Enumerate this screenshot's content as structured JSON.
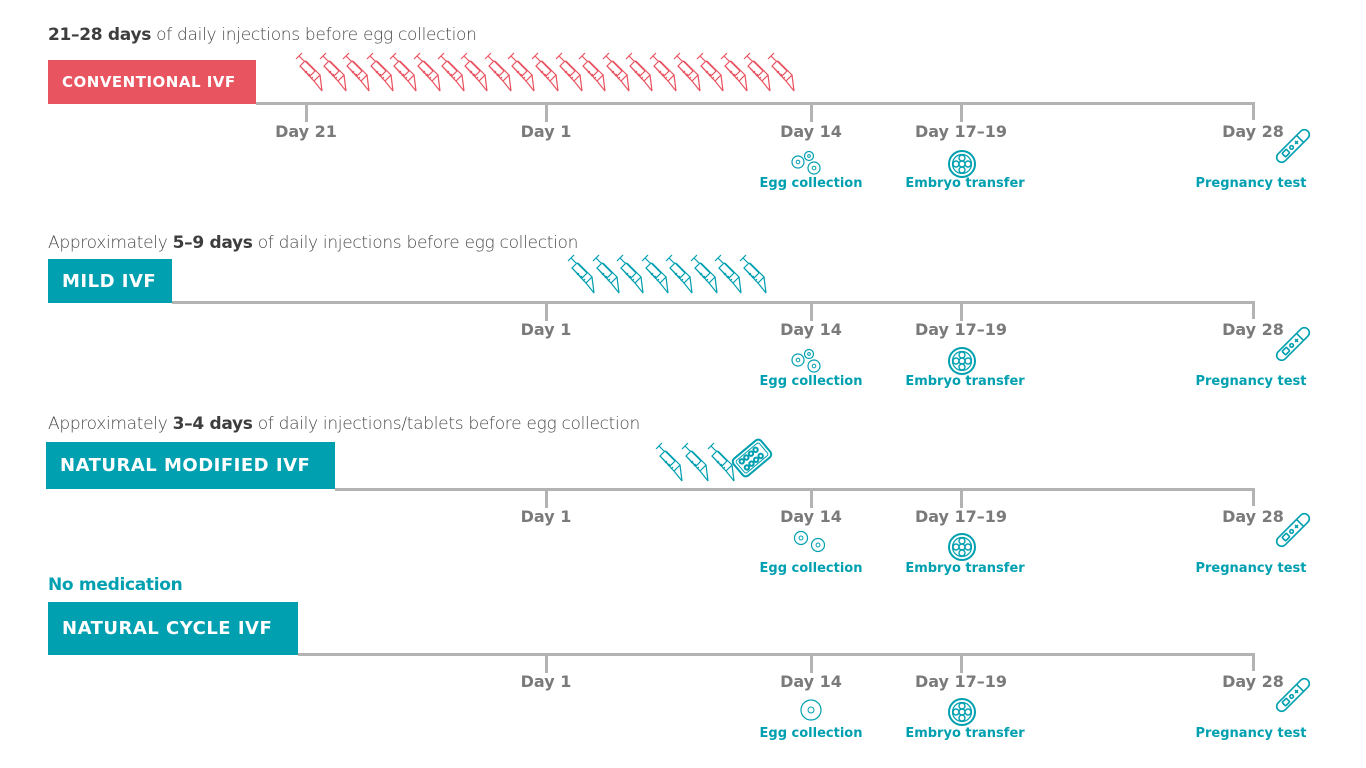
{
  "colors": {
    "conventional": "#e95461",
    "teal": "#00a0b0",
    "timeline_line": "#b3b3b3",
    "day_label": "#7a7a7a",
    "caption": "#4a4a4a"
  },
  "rows": [
    {
      "title": "CONVENTIONAL  IVF",
      "caption_bold": "21–28 days",
      "caption_pre": "",
      "caption_post": " of daily injections before egg collection",
      "injections": 21,
      "tablets": 0,
      "days": [
        "Day 21",
        "Day 1",
        "Day 14",
        "Day 17–19",
        "Day 28"
      ],
      "events": [
        "Egg collection",
        "Embryo transfer",
        "Pregnancy test"
      ],
      "eggs": 3
    },
    {
      "title": "MILD IVF",
      "caption_pre": "Approximately ",
      "caption_bold": "5–9 days",
      "caption_post": " of daily injections before egg collection",
      "injections": 8,
      "tablets": 0,
      "days": [
        "Day 1",
        "Day 14",
        "Day 17–19",
        "Day 28"
      ],
      "events": [
        "Egg collection",
        "Embryo transfer",
        "Pregnancy test"
      ],
      "eggs": 3
    },
    {
      "title": "NATURAL MODIFIED IVF",
      "caption_pre": "Approximately ",
      "caption_bold": "3–4 days",
      "caption_post": " of daily injections/tablets before egg collection",
      "injections": 3,
      "tablets": 1,
      "days": [
        "Day 1",
        "Day 14",
        "Day 17–19",
        "Day 28"
      ],
      "events": [
        "Egg collection",
        "Embryo transfer",
        "Pregnancy test"
      ],
      "eggs": 2
    },
    {
      "title": "NATURAL CYCLE IVF",
      "caption": "No medication",
      "injections": 0,
      "tablets": 0,
      "days": [
        "Day 1",
        "Day 14",
        "Day 17–19",
        "Day 28"
      ],
      "events": [
        "Egg collection",
        "Embryo transfer",
        "Pregnancy test"
      ],
      "eggs": 1
    }
  ]
}
